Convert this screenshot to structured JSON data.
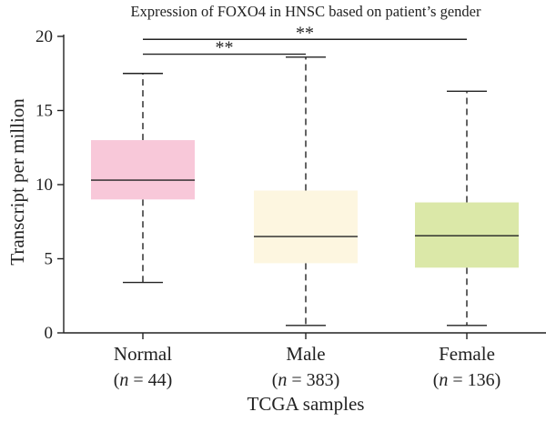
{
  "chart_data": {
    "type": "box",
    "title": "Expression of FOXO4 in HNSC based on patient’s gender",
    "xlabel": "TCGA samples",
    "ylabel": "Transcript per million",
    "ylim": [
      0,
      20
    ],
    "yticks": [
      0,
      5,
      10,
      15,
      20
    ],
    "grid": false,
    "boxes": [
      {
        "category": "Normal",
        "n_prefix": "n",
        "n_text": " = 44",
        "color": "#f8c8d9",
        "min": 3.4,
        "q1": 9.0,
        "median": 10.3,
        "q3": 13.0,
        "max": 17.5
      },
      {
        "category": "Male",
        "n_prefix": "n",
        "n_text": " = 383",
        "color": "#fdf6e0",
        "min": 0.5,
        "q1": 4.7,
        "median": 6.5,
        "q3": 9.6,
        "max": 18.6
      },
      {
        "category": "Female",
        "n_prefix": "n",
        "n_text": " = 136",
        "color": "#dbe8a8",
        "min": 0.5,
        "q1": 4.4,
        "median": 6.55,
        "q3": 8.8,
        "max": 16.3
      }
    ],
    "significance": [
      {
        "from": "Normal",
        "to": "Male",
        "label": "**",
        "y": 18.8
      },
      {
        "from": "Normal",
        "to": "Female",
        "label": "**",
        "y": 19.8
      }
    ]
  }
}
